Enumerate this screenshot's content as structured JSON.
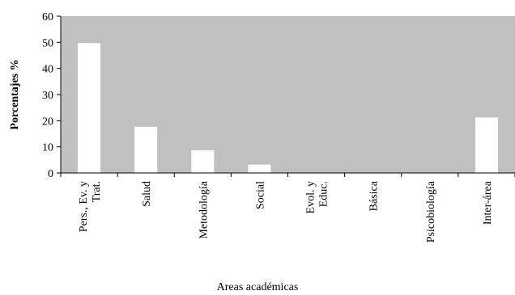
{
  "chart_data": {
    "type": "bar",
    "title": "",
    "xlabel": "Areas académicas",
    "ylabel": "Porcentajes %",
    "ylim": [
      0,
      60
    ],
    "yticks": [
      0,
      10,
      20,
      30,
      40,
      50,
      60
    ],
    "categories": [
      [
        "Pers., Ev. y",
        "Trat."
      ],
      [
        "Salud"
      ],
      [
        "Metodología"
      ],
      [
        "Social"
      ],
      [
        "Evol. y",
        "Educ."
      ],
      [
        "Básica"
      ],
      [
        "Psicobiología"
      ],
      [
        "Inter-área"
      ]
    ],
    "values": [
      49.7,
      17.7,
      8.7,
      3.2,
      0,
      0,
      0,
      21.2
    ],
    "grid": false,
    "legend": "none",
    "colors": {
      "plot_background": "#c0c0c0",
      "bar_fill": "#ffffff",
      "axis": "#000000"
    }
  }
}
